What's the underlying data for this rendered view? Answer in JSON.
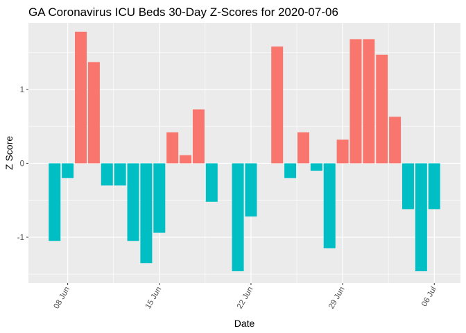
{
  "chart_data": {
    "type": "bar",
    "title": "GA Coronavirus ICU Beds 30-Day Z-Scores for 2020-07-06",
    "xlabel": "Date",
    "ylabel": "Z Score",
    "x_type": "date",
    "x_ticks": [
      "08 Jun",
      "15 Jun",
      "22 Jun",
      "29 Jun",
      "06 Jul"
    ],
    "x_tick_dates": [
      "2020-06-08",
      "2020-06-15",
      "2020-06-22",
      "2020-06-29",
      "2020-07-06"
    ],
    "y_ticks": [
      "-1",
      "0",
      "1"
    ],
    "y_tick_values": [
      -1,
      0,
      1
    ],
    "ylim": [
      -1.62,
      1.9
    ],
    "xlim": [
      "2020-06-05",
      "2020-07-08"
    ],
    "grid": true,
    "legend": "none",
    "colors": {
      "positive": "#F8766D",
      "negative": "#00BFC4",
      "panel": "#EBEBEB",
      "grid": "#FFFFFF"
    },
    "dates": [
      "2020-06-07",
      "2020-06-08",
      "2020-06-09",
      "2020-06-10",
      "2020-06-11",
      "2020-06-12",
      "2020-06-13",
      "2020-06-14",
      "2020-06-15",
      "2020-06-16",
      "2020-06-17",
      "2020-06-18",
      "2020-06-19",
      "2020-06-20",
      "2020-06-21",
      "2020-06-22",
      "2020-06-23",
      "2020-06-24",
      "2020-06-25",
      "2020-06-26",
      "2020-06-27",
      "2020-06-28",
      "2020-06-29",
      "2020-06-30",
      "2020-07-01",
      "2020-07-02",
      "2020-07-03",
      "2020-07-04",
      "2020-07-05",
      "2020-07-06"
    ],
    "values": [
      -1.05,
      -0.2,
      1.78,
      1.37,
      -0.3,
      -0.3,
      -1.05,
      -1.35,
      -0.94,
      0.42,
      0.11,
      0.73,
      -0.52,
      0,
      -1.46,
      -0.72,
      0,
      1.58,
      -0.2,
      0.42,
      -0.1,
      -1.15,
      0.32,
      1.68,
      1.68,
      1.47,
      0.63,
      -0.62,
      -1.46,
      -0.62
    ]
  }
}
